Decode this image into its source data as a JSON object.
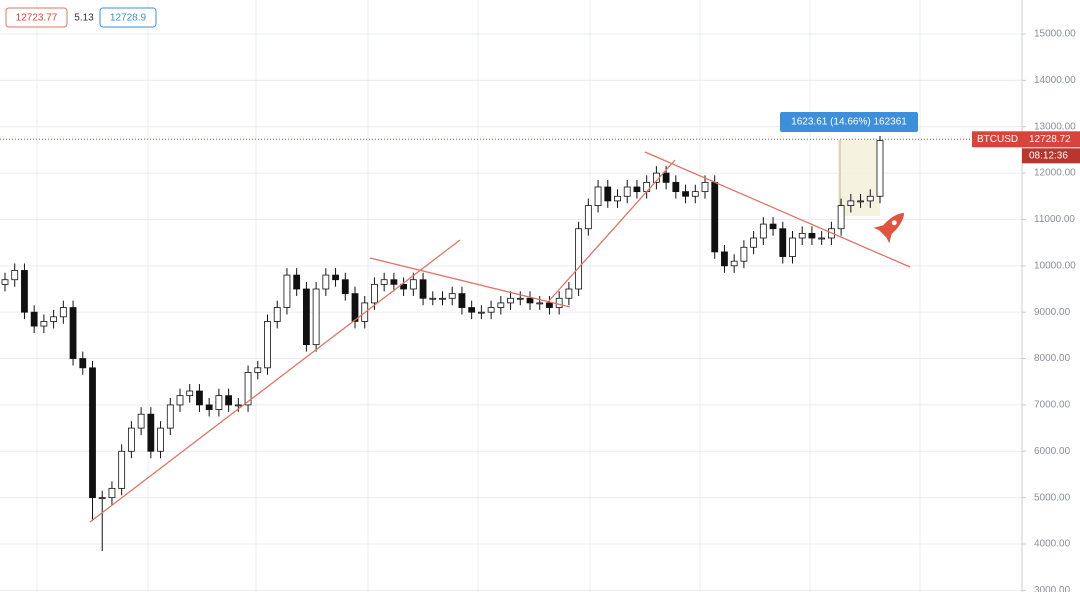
{
  "chart_data": {
    "type": "candlestick",
    "symbol": "BTCUSD",
    "last_price": 12728.72,
    "countdown": "08:12:36",
    "bid": 12723.77,
    "spread": 5.13,
    "ask": 12728.9,
    "measure_label": "1623.61 (14.66%) 162361",
    "categories": [
      null,
      null,
      null,
      null,
      null,
      null,
      null,
      null,
      null,
      null,
      null,
      null,
      null,
      null,
      null,
      null,
      null,
      null,
      null,
      null,
      null,
      null,
      null,
      null,
      null,
      null,
      null,
      null,
      null,
      null,
      null,
      null,
      null,
      null,
      null,
      null,
      null,
      null,
      null,
      null,
      null,
      null,
      null,
      null,
      null,
      null,
      null,
      null,
      null,
      null,
      null,
      null,
      null,
      null,
      null,
      null,
      null,
      null,
      null,
      null,
      null,
      null,
      null,
      null,
      null,
      null,
      null,
      null,
      null,
      null,
      null,
      null,
      null,
      null,
      null,
      null,
      null,
      null,
      null,
      null,
      null,
      null,
      null,
      null,
      null,
      null,
      null,
      null,
      null,
      null,
      null
    ],
    "open": [
      9600,
      9700,
      9900,
      9000,
      8700,
      8800,
      8900,
      9100,
      8000,
      7800,
      5000,
      5000,
      5200,
      6000,
      6500,
      6800,
      6000,
      6500,
      7000,
      7200,
      7300,
      7000,
      6900,
      7200,
      7000,
      7000,
      7700,
      7800,
      8800,
      9100,
      9800,
      9500,
      8300,
      9500,
      9800,
      9700,
      9400,
      8800,
      9200,
      9600,
      9700,
      9600,
      9500,
      9700,
      9300,
      9300,
      9300,
      9400,
      9100,
      9000,
      9000,
      9100,
      9200,
      9300,
      9300,
      9200,
      9200,
      9100,
      9300,
      9500,
      10800,
      11300,
      11700,
      11400,
      11500,
      11700,
      11600,
      11800,
      12000,
      11800,
      11600,
      11500,
      11600,
      11800,
      10300,
      10000,
      10100,
      10400,
      10600,
      10900,
      10800,
      10200,
      10600,
      10700,
      10600,
      10600,
      10800,
      11300,
      11400,
      11400,
      11500
    ],
    "high": [
      9850,
      10050,
      10050,
      9150,
      8950,
      9050,
      9250,
      9250,
      8150,
      7950,
      5150,
      5350,
      6150,
      6650,
      6950,
      6950,
      6650,
      7150,
      7350,
      7450,
      7450,
      7150,
      7350,
      7350,
      7150,
      7850,
      7950,
      8950,
      9250,
      9950,
      9950,
      9650,
      9650,
      9950,
      9950,
      9850,
      9550,
      9350,
      9750,
      9850,
      9850,
      9750,
      9850,
      9850,
      9450,
      9450,
      9550,
      9550,
      9250,
      9150,
      9250,
      9350,
      9450,
      9450,
      9450,
      9350,
      9350,
      9450,
      9650,
      10950,
      11450,
      11850,
      11850,
      11650,
      11850,
      11850,
      11950,
      12150,
      12150,
      11950,
      11750,
      11750,
      11950,
      11950,
      10450,
      10250,
      10550,
      10750,
      11050,
      11050,
      10950,
      10750,
      10850,
      10850,
      10750,
      10950,
      11450,
      11550,
      11550,
      11650,
      12800
    ],
    "low": [
      9450,
      9550,
      8850,
      8550,
      8550,
      8650,
      8750,
      7850,
      7650,
      4500,
      3850,
      4850,
      5050,
      5850,
      6350,
      5850,
      5850,
      6350,
      6850,
      7050,
      6850,
      6750,
      6750,
      6850,
      6850,
      6850,
      7550,
      7650,
      8650,
      8950,
      9350,
      8150,
      8150,
      9350,
      9550,
      9250,
      8650,
      8650,
      9050,
      9450,
      9450,
      9350,
      9350,
      9150,
      9150,
      9150,
      9150,
      8950,
      8850,
      8850,
      8850,
      8950,
      9050,
      9150,
      9050,
      9050,
      8950,
      8950,
      9150,
      9350,
      10650,
      11150,
      11250,
      11250,
      11350,
      11450,
      11450,
      11650,
      11650,
      11450,
      11350,
      11350,
      11450,
      10150,
      9850,
      9850,
      9950,
      10250,
      10450,
      10650,
      10050,
      10050,
      10450,
      10450,
      10450,
      10450,
      10650,
      11150,
      11250,
      11250,
      11350
    ],
    "close": [
      9700,
      9900,
      9000,
      8700,
      8800,
      8900,
      9100,
      8000,
      7800,
      5000,
      5000,
      5200,
      6000,
      6500,
      6800,
      6000,
      6500,
      7000,
      7200,
      7300,
      7000,
      6900,
      7200,
      7000,
      7000,
      7700,
      7800,
      8800,
      9100,
      9800,
      9500,
      8300,
      9500,
      9800,
      9700,
      9400,
      8800,
      9200,
      9600,
      9700,
      9600,
      9500,
      9700,
      9300,
      9300,
      9300,
      9400,
      9100,
      9000,
      9000,
      9100,
      9200,
      9300,
      9300,
      9200,
      9200,
      9100,
      9300,
      9500,
      10800,
      11300,
      11700,
      11400,
      11500,
      11700,
      11600,
      11800,
      12000,
      11800,
      11600,
      11500,
      11600,
      11800,
      10300,
      10000,
      10100,
      10400,
      10600,
      10900,
      10800,
      10200,
      10600,
      10700,
      10600,
      10600,
      10800,
      11300,
      11400,
      11400,
      11500,
      12700
    ],
    "up_color": "#ffffff",
    "down_color": "#111111",
    "wick_color": "#111111",
    "price_color": "#d9443a",
    "ylim": [
      2965,
      15733
    ],
    "yticks": [
      {
        "value": 3000,
        "label": "3000.00"
      },
      {
        "value": 4000,
        "label": "4000.00"
      },
      {
        "value": 5000,
        "label": "5000.00"
      },
      {
        "value": 6000,
        "label": "6000.00"
      },
      {
        "value": 7000,
        "label": "7000.00"
      },
      {
        "value": 8000,
        "label": "8000.00"
      },
      {
        "value": 9000,
        "label": "9000.00"
      },
      {
        "value": 10000,
        "label": "10000.00"
      },
      {
        "value": 11000,
        "label": "11000.00"
      },
      {
        "value": 12000,
        "label": "12000.00"
      },
      {
        "value": 13000,
        "label": "13000.00"
      },
      {
        "value": 14000,
        "label": "14000.00"
      },
      {
        "value": 15000,
        "label": "15000.00"
      }
    ],
    "grid": true
  }
}
